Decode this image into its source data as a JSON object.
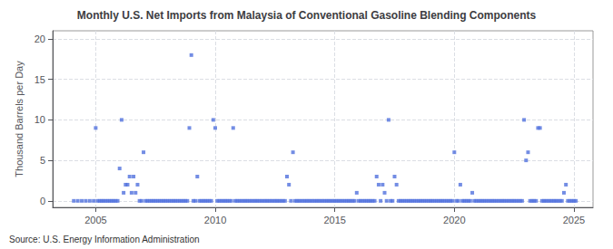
{
  "chart_data": {
    "type": "scatter",
    "title": "Monthly U.S. Net Imports from Malaysia of Conventional Gasoline Blending Components",
    "ylabel": "Thousand Barrels per Day",
    "source": "Source: U.S. Energy Information Administration",
    "marker": "square",
    "grid": true,
    "xlim": [
      2003.2,
      2025.8
    ],
    "xticks": [
      2005,
      2010,
      2015,
      2020,
      2025
    ],
    "ylim": [
      -0.8,
      21
    ],
    "yticks": [
      0,
      5,
      10,
      15,
      20
    ],
    "x": [
      2004.083,
      2004.25,
      2004.417,
      2004.583,
      2004.75,
      2004.917,
      2005.0,
      2005.083,
      2005.167,
      2005.25,
      2005.333,
      2005.417,
      2005.5,
      2005.583,
      2005.667,
      2005.75,
      2005.833,
      2005.917,
      2006.0,
      2006.083,
      2006.167,
      2006.25,
      2006.333,
      2006.417,
      2006.5,
      2006.583,
      2006.667,
      2006.75,
      2006.833,
      2006.917,
      2007.0,
      2007.083,
      2007.167,
      2007.25,
      2007.333,
      2007.417,
      2007.5,
      2007.583,
      2007.667,
      2007.75,
      2007.833,
      2007.917,
      2008.0,
      2008.083,
      2008.167,
      2008.25,
      2008.333,
      2008.417,
      2008.5,
      2008.583,
      2008.667,
      2008.75,
      2008.833,
      2008.917,
      2009.0,
      2009.083,
      2009.167,
      2009.25,
      2009.333,
      2009.417,
      2009.5,
      2009.583,
      2009.667,
      2009.75,
      2009.833,
      2009.917,
      2010.0,
      2010.083,
      2010.167,
      2010.25,
      2010.333,
      2010.417,
      2010.5,
      2010.583,
      2010.667,
      2010.75,
      2010.833,
      2010.917,
      2011.0,
      2011.083,
      2011.167,
      2011.25,
      2011.333,
      2011.417,
      2011.5,
      2011.583,
      2011.667,
      2011.75,
      2011.833,
      2011.917,
      2012.0,
      2012.083,
      2012.167,
      2012.25,
      2012.333,
      2012.417,
      2012.5,
      2012.583,
      2012.667,
      2012.75,
      2012.833,
      2012.917,
      2013.0,
      2013.083,
      2013.167,
      2013.25,
      2013.333,
      2013.417,
      2013.5,
      2013.583,
      2013.667,
      2013.75,
      2013.833,
      2013.917,
      2014.0,
      2014.083,
      2014.167,
      2014.25,
      2014.333,
      2014.417,
      2014.5,
      2014.583,
      2014.667,
      2014.75,
      2014.833,
      2014.917,
      2015.0,
      2015.083,
      2015.167,
      2015.25,
      2015.333,
      2015.417,
      2015.5,
      2015.583,
      2015.667,
      2015.75,
      2015.833,
      2015.917,
      2016.0,
      2016.083,
      2016.167,
      2016.25,
      2016.333,
      2016.417,
      2016.5,
      2016.583,
      2016.667,
      2016.75,
      2016.833,
      2016.917,
      2017.0,
      2017.083,
      2017.167,
      2017.25,
      2017.333,
      2017.417,
      2017.5,
      2017.583,
      2017.667,
      2017.75,
      2017.833,
      2017.917,
      2018.0,
      2018.083,
      2018.167,
      2018.25,
      2018.333,
      2018.417,
      2018.5,
      2018.583,
      2018.667,
      2018.75,
      2018.833,
      2018.917,
      2019.0,
      2019.083,
      2019.167,
      2019.25,
      2019.333,
      2019.417,
      2019.5,
      2019.583,
      2019.667,
      2019.75,
      2019.833,
      2019.917,
      2020.0,
      2020.083,
      2020.167,
      2020.25,
      2020.333,
      2020.417,
      2020.5,
      2020.583,
      2020.667,
      2020.75,
      2020.833,
      2020.917,
      2021.0,
      2021.083,
      2021.167,
      2021.25,
      2021.333,
      2021.417,
      2021.5,
      2021.583,
      2021.667,
      2021.75,
      2021.833,
      2021.917,
      2022.0,
      2022.083,
      2022.167,
      2022.25,
      2022.333,
      2022.417,
      2022.5,
      2022.583,
      2022.667,
      2022.75,
      2022.833,
      2022.917,
      2023.0,
      2023.083,
      2023.167,
      2023.25,
      2023.333,
      2023.417,
      2023.5,
      2023.583,
      2023.667,
      2023.75,
      2023.833,
      2023.917,
      2024.0,
      2024.083,
      2024.167,
      2024.25,
      2024.333,
      2024.417,
      2024.5,
      2024.583,
      2024.667,
      2024.75,
      2024.833,
      2024.917,
      2025.0,
      2025.083
    ],
    "values": [
      0,
      0,
      0,
      0,
      0,
      0,
      9,
      0,
      0,
      0,
      0,
      0,
      0,
      0,
      0,
      0,
      0,
      0,
      4,
      10,
      1,
      2,
      2,
      3,
      1,
      3,
      1,
      2,
      0,
      0,
      6,
      0,
      0,
      0,
      0,
      0,
      0,
      0,
      0,
      0,
      0,
      0,
      0,
      0,
      0,
      0,
      0,
      0,
      0,
      0,
      0,
      0,
      0,
      9,
      18,
      0,
      0,
      3,
      0,
      0,
      0,
      0,
      0,
      0,
      0,
      10,
      9,
      0,
      0,
      0,
      0,
      0,
      0,
      0,
      0,
      9,
      0,
      0,
      0,
      0,
      0,
      0,
      0,
      0,
      0,
      0,
      0,
      0,
      0,
      0,
      0,
      0,
      0,
      0,
      0,
      0,
      0,
      0,
      0,
      0,
      0,
      0,
      3,
      2,
      0,
      6,
      0,
      0,
      0,
      0,
      0,
      0,
      0,
      0,
      0,
      0,
      0,
      0,
      0,
      0,
      0,
      0,
      0,
      0,
      0,
      0,
      0,
      0,
      0,
      0,
      0,
      0,
      0,
      0,
      0,
      0,
      0,
      1,
      0,
      0,
      0,
      0,
      0,
      0,
      0,
      0,
      0,
      3,
      2,
      0,
      2,
      1,
      0,
      10,
      0,
      0,
      3,
      2,
      0,
      0,
      0,
      0,
      0,
      0,
      0,
      0,
      0,
      0,
      0,
      0,
      0,
      0,
      0,
      0,
      0,
      0,
      0,
      0,
      0,
      0,
      0,
      0,
      0,
      0,
      0,
      0,
      6,
      0,
      0,
      2,
      0,
      0,
      0,
      0,
      0,
      1,
      0,
      0,
      0,
      0,
      0,
      0,
      0,
      0,
      0,
      0,
      0,
      0,
      0,
      0,
      0,
      0,
      0,
      0,
      0,
      0,
      0,
      0,
      0,
      0,
      0,
      10,
      5,
      6,
      0,
      0,
      0,
      0,
      9,
      9,
      0,
      0,
      0,
      0,
      0,
      0,
      0,
      0,
      0,
      0,
      0,
      1,
      2,
      0,
      0,
      0,
      0,
      0
    ]
  }
}
